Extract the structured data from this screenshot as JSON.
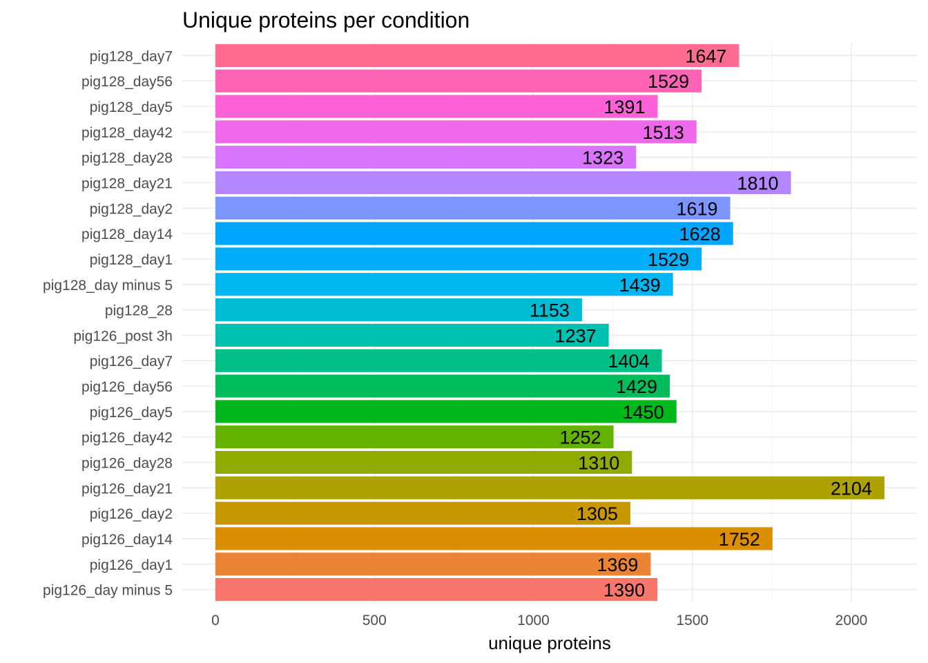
{
  "chart_data": {
    "type": "bar",
    "orientation": "horizontal",
    "title": "Unique proteins per condition",
    "xlabel": "unique proteins",
    "ylabel": "",
    "xlim": [
      0,
      2200
    ],
    "x_ticks": [
      0,
      500,
      1000,
      1500,
      2000
    ],
    "grid": true,
    "legend": "none",
    "categories": [
      "pig126_day minus 5",
      "pig126_day1",
      "pig126_day14",
      "pig126_day2",
      "pig126_day21",
      "pig126_day28",
      "pig126_day42",
      "pig126_day5",
      "pig126_day56",
      "pig126_day7",
      "pig126_post 3h",
      "pig128_28",
      "pig128_day minus 5",
      "pig128_day1",
      "pig128_day14",
      "pig128_day2",
      "pig128_day21",
      "pig128_day28",
      "pig128_day42",
      "pig128_day5",
      "pig128_day56",
      "pig128_day7"
    ],
    "values": [
      1390,
      1369,
      1752,
      1305,
      2104,
      1310,
      1252,
      1450,
      1429,
      1404,
      1237,
      1153,
      1439,
      1529,
      1628,
      1619,
      1810,
      1323,
      1513,
      1391,
      1529,
      1647
    ],
    "colors": [
      "#F8766D",
      "#EB8335",
      "#DB8E00",
      "#C79800",
      "#AEA200",
      "#8FAA00",
      "#64B200",
      "#00B81B",
      "#00BD5C",
      "#00C087",
      "#00C0AF",
      "#00BDD4",
      "#00B7F2",
      "#00AEFA",
      "#00A5FF",
      "#7D96FF",
      "#B385FF",
      "#D874FD",
      "#EF67EB",
      "#FC61D5",
      "#FF63B6",
      "#FF6C91"
    ]
  }
}
